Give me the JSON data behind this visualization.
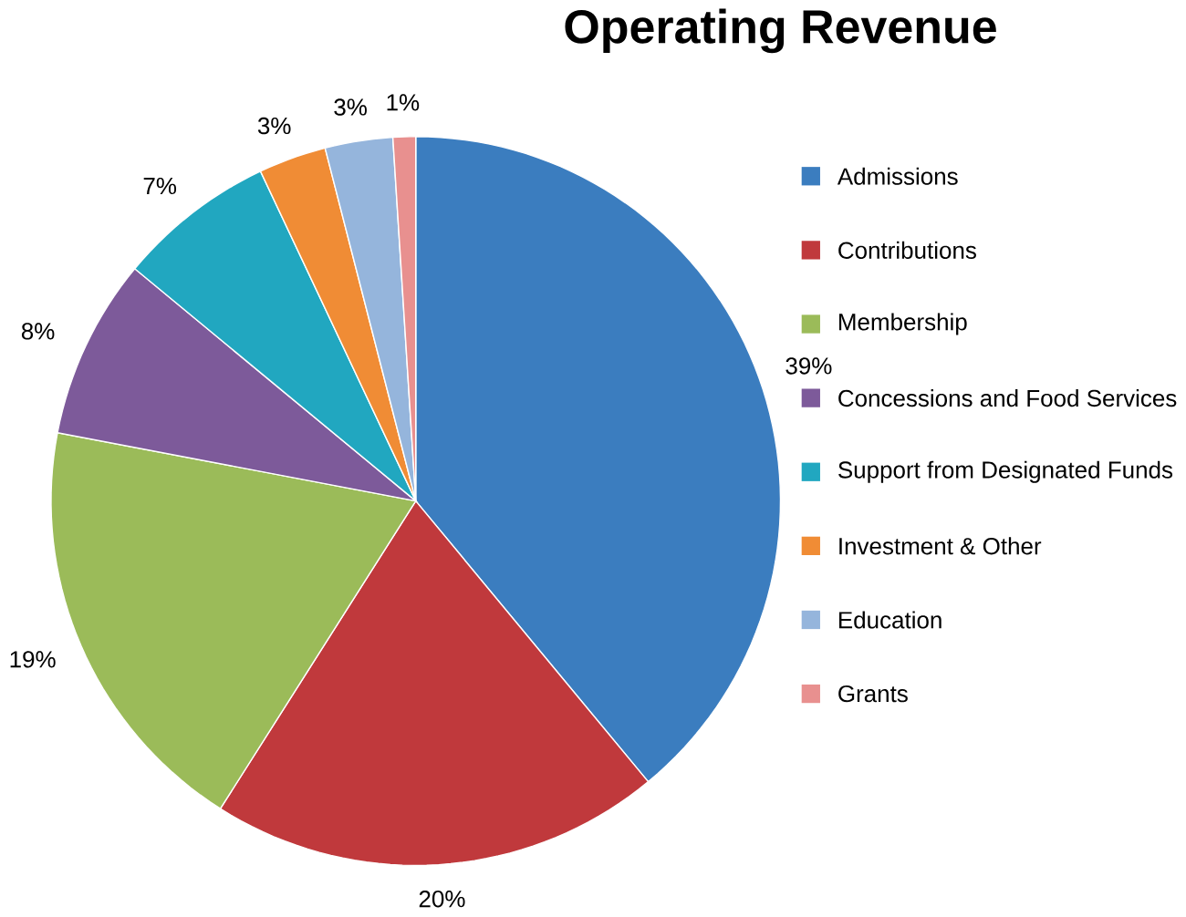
{
  "chart_data": {
    "type": "pie",
    "title": "Operating  Revenue",
    "categories": [
      "Admissions",
      "Contributions",
      "Membership",
      "Concessions and Food Services",
      "Support from Designated Funds",
      "Investment & Other",
      "Education",
      "Grants"
    ],
    "values": [
      39,
      20,
      19,
      8,
      7,
      3,
      3,
      1
    ],
    "value_labels": [
      "39%",
      "20%",
      "19%",
      "8%",
      "7%",
      "3%",
      "3%",
      "1%"
    ],
    "colors": [
      "#3b7dbf",
      "#c0393c",
      "#9bbb59",
      "#7d5a9a",
      "#21a7c0",
      "#f08c35",
      "#95b5dc",
      "#e8908f"
    ],
    "legend": "right"
  }
}
